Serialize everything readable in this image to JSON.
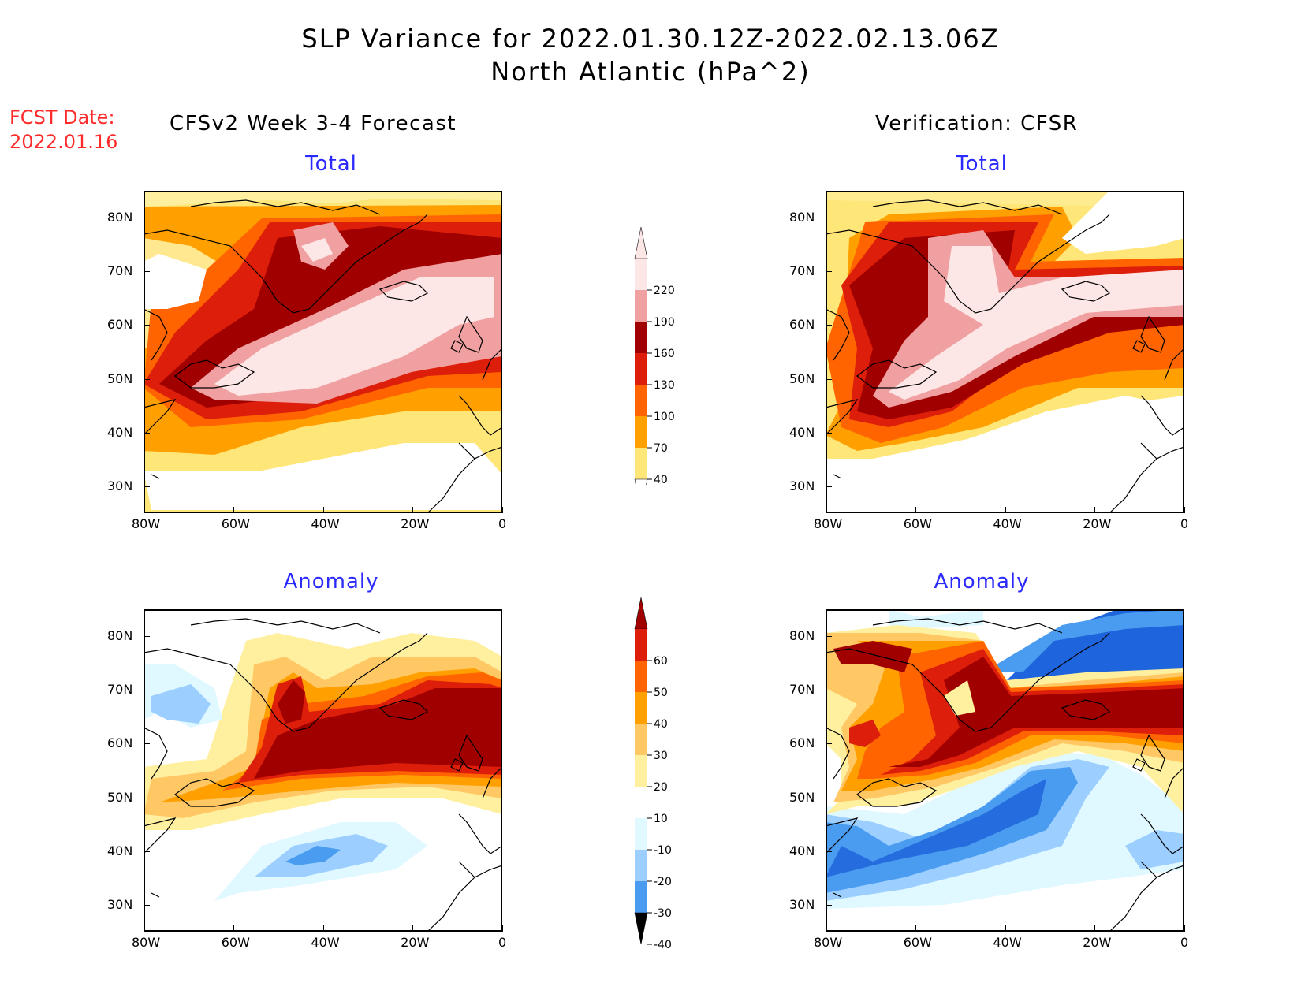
{
  "title_line1": "SLP Variance for 2022.01.30.12Z-2022.02.13.06Z",
  "title_line2": "North Atlantic (hPa^2)",
  "fcst_label": "FCST Date:",
  "fcst_date": "2022.01.16",
  "left_column_title": "CFSv2 Week 3-4 Forecast",
  "right_column_title": "Verification: CFSR",
  "panels": {
    "forecast_total": "Total",
    "verification_total": "Total",
    "forecast_anomaly": "Anomaly",
    "verification_anomaly": "Anomaly"
  },
  "axes": {
    "lat_labels": [
      "80N",
      "70N",
      "60N",
      "50N",
      "40N",
      "30N"
    ],
    "lon_labels": [
      "80W",
      "60W",
      "40W",
      "20W",
      "0"
    ],
    "lat_range": [
      25,
      85
    ],
    "lon_range": [
      -80,
      0
    ]
  },
  "colorbar_total": {
    "levels": [
      "220",
      "190",
      "160",
      "130",
      "100",
      "70",
      "40"
    ],
    "colors": [
      "#fde6e6",
      "#f0a0a0",
      "#a00000",
      "#dc1e0a",
      "#ff6400",
      "#ffa000",
      "#ffe678"
    ]
  },
  "colorbar_anomaly": {
    "levels": [
      "60",
      "50",
      "40",
      "30",
      "20",
      "10",
      "-10",
      "-20",
      "-30",
      "-40"
    ],
    "colors": [
      "#a00000",
      "#dc1e0a",
      "#ff6400",
      "#ffa000",
      "#ffc864",
      "#fff0a0",
      "#ffffff",
      "#e0f8ff",
      "#9ccfff",
      "#4a9cf0",
      "#1e64dc"
    ]
  },
  "colors": {
    "title_red": "#ff2a2a",
    "panel_blue": "#2a2aff"
  }
}
